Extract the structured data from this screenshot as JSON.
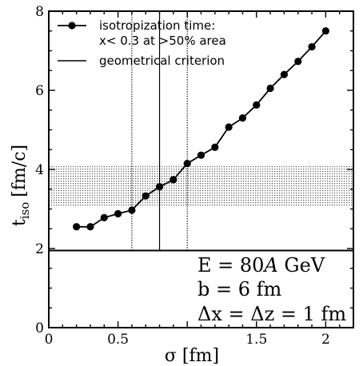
{
  "chart_data": {
    "type": "line",
    "xlim": [
      0,
      2.2
    ],
    "ylim": [
      0,
      8
    ],
    "xticks": [
      {
        "value": 0,
        "label": "0"
      },
      {
        "value": 0.5,
        "label": "0.5"
      },
      {
        "value": 1,
        "label": ""
      },
      {
        "value": 1.5,
        "label": "1.5"
      },
      {
        "value": 2,
        "label": "2"
      }
    ],
    "yticks": [
      {
        "value": 0,
        "label": "0"
      },
      {
        "value": 2,
        "label": "2"
      },
      {
        "value": 4,
        "label": "4"
      },
      {
        "value": 6,
        "label": "6"
      },
      {
        "value": 8,
        "label": "8"
      }
    ],
    "xlabel": "σ [fm]",
    "ylabel_main": "t",
    "ylabel_sub": "iso",
    "ylabel_unit": "[fm/c]",
    "series": [
      {
        "name_line1": "isotropization time:",
        "name_line2": "x< 0.3 at >50% area",
        "x": [
          0.2,
          0.3,
          0.4,
          0.5,
          0.6,
          0.7,
          0.8,
          0.9,
          1.0,
          1.1,
          1.2,
          1.3,
          1.4,
          1.5,
          1.6,
          1.7,
          1.8,
          1.9,
          2.0
        ],
        "y": [
          2.55,
          2.55,
          2.78,
          2.88,
          2.97,
          3.33,
          3.56,
          3.74,
          4.15,
          4.36,
          4.56,
          5.07,
          5.3,
          5.63,
          6.05,
          6.4,
          6.73,
          7.1,
          7.5
        ],
        "color": "#000000"
      }
    ],
    "geometrical_criterion": {
      "name": "geometrical criterion",
      "y": 1.95,
      "vlines_dotted": [
        0.6,
        1.0
      ],
      "vline_solid": 0.8
    },
    "band": {
      "y_low": 3.05,
      "y_high": 4.12
    },
    "annotations": [
      "E = 80A GeV",
      "b = 6 fm",
      "Δx = Δz = 1 fm"
    ]
  }
}
